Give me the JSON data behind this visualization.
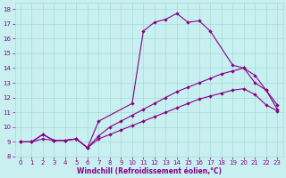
{
  "xlabel": "Windchill (Refroidissement éolien,°C)",
  "background_color": "#c8f0f0",
  "grid_color": "#a8d8d8",
  "line_color": "#880088",
  "xlim_min": -0.5,
  "xlim_max": 23.5,
  "ylim_min": 8,
  "ylim_max": 18.4,
  "xticks": [
    0,
    1,
    2,
    3,
    4,
    5,
    6,
    7,
    8,
    9,
    10,
    11,
    12,
    13,
    14,
    15,
    16,
    17,
    18,
    19,
    20,
    21,
    22,
    23
  ],
  "yticks": [
    8,
    9,
    10,
    11,
    12,
    13,
    14,
    15,
    16,
    17,
    18
  ],
  "line1_x": [
    0,
    1,
    2,
    3,
    4,
    5,
    6,
    7,
    10,
    11,
    12,
    13,
    14,
    15,
    16,
    17,
    19,
    20,
    21,
    22,
    23
  ],
  "line1_y": [
    9.0,
    9.0,
    9.5,
    9.1,
    9.1,
    9.2,
    8.6,
    10.4,
    11.6,
    16.5,
    17.1,
    17.3,
    17.7,
    17.1,
    17.2,
    16.5,
    14.2,
    14.0,
    13.0,
    12.5,
    11.2
  ],
  "line2_x": [
    0,
    1,
    2,
    3,
    4,
    5,
    6,
    7,
    8,
    9,
    10,
    11,
    12,
    13,
    14,
    15,
    16,
    17,
    18,
    19,
    20,
    21,
    22,
    23
  ],
  "line2_y": [
    9.0,
    9.0,
    9.5,
    9.1,
    9.1,
    9.2,
    8.6,
    9.4,
    10.0,
    10.4,
    10.8,
    11.2,
    11.6,
    12.0,
    12.4,
    12.7,
    13.0,
    13.3,
    13.6,
    13.8,
    14.0,
    13.5,
    12.5,
    11.5
  ],
  "line3_x": [
    0,
    1,
    2,
    3,
    4,
    5,
    6,
    7,
    8,
    9,
    10,
    11,
    12,
    13,
    14,
    15,
    16,
    17,
    18,
    19,
    20,
    21,
    22,
    23
  ],
  "line3_y": [
    9.0,
    9.0,
    9.2,
    9.1,
    9.1,
    9.2,
    8.6,
    9.2,
    9.5,
    9.8,
    10.1,
    10.4,
    10.7,
    11.0,
    11.3,
    11.6,
    11.9,
    12.1,
    12.3,
    12.5,
    12.6,
    12.2,
    11.5,
    11.1
  ]
}
